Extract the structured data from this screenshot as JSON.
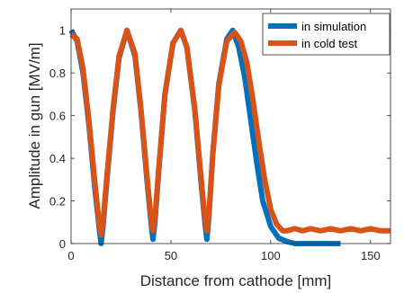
{
  "chart_data": {
    "type": "line",
    "xlabel": "Distance from cathode [mm]",
    "ylabel": "Amplitude in gun [MV/m]",
    "xlim": [
      0,
      160
    ],
    "ylim": [
      0,
      1.1
    ],
    "x_ticks": [
      0,
      50,
      100,
      150
    ],
    "y_ticks": [
      0,
      0.2,
      0.4,
      0.6,
      0.8,
      1
    ],
    "x_tick_labels": [
      "0",
      "50",
      "100",
      "150"
    ],
    "y_tick_labels": [
      "0",
      "0.2",
      "0.4",
      "0.6",
      "0.8",
      "1"
    ],
    "grid": false,
    "legend_position": "top-right",
    "series": [
      {
        "name": "in simulation",
        "color": "#0072BD",
        "x": [
          0,
          3,
          6,
          9,
          12,
          14,
          15,
          16,
          18,
          21,
          24,
          28,
          32,
          35,
          38,
          40,
          41,
          42,
          44,
          47,
          51,
          55,
          58,
          62,
          65,
          67,
          68,
          69,
          71,
          74,
          78,
          81,
          84,
          87,
          90,
          93,
          96,
          100,
          104,
          108,
          112,
          116,
          120,
          125,
          130,
          135
        ],
        "values": [
          1.0,
          0.95,
          0.8,
          0.55,
          0.25,
          0.08,
          0.0,
          0.08,
          0.3,
          0.62,
          0.87,
          1.0,
          0.88,
          0.62,
          0.3,
          0.1,
          0.02,
          0.1,
          0.35,
          0.7,
          0.94,
          1.0,
          0.92,
          0.62,
          0.3,
          0.1,
          0.02,
          0.12,
          0.42,
          0.75,
          0.96,
          1.0,
          0.92,
          0.78,
          0.58,
          0.38,
          0.2,
          0.08,
          0.025,
          0.01,
          0.0,
          0.0,
          0.0,
          0.0,
          0.0,
          0.0
        ]
      },
      {
        "name": "in cold test",
        "color": "#D95319",
        "x": [
          0,
          3,
          6,
          9,
          12,
          14,
          15,
          16,
          18,
          21,
          24,
          28,
          32,
          35,
          38,
          40,
          41,
          42,
          44,
          47,
          51,
          55,
          58,
          62,
          65,
          67,
          68,
          69,
          71,
          74,
          78,
          82,
          85,
          88,
          91,
          94,
          97,
          100,
          103,
          106,
          108,
          112,
          116,
          120,
          125,
          130,
          135,
          140,
          145,
          150,
          155,
          160
        ],
        "values": [
          0.98,
          0.96,
          0.82,
          0.57,
          0.28,
          0.1,
          0.04,
          0.1,
          0.32,
          0.63,
          0.88,
          1.0,
          0.89,
          0.63,
          0.32,
          0.12,
          0.06,
          0.12,
          0.36,
          0.7,
          0.94,
          1.0,
          0.92,
          0.63,
          0.32,
          0.12,
          0.06,
          0.13,
          0.42,
          0.74,
          0.95,
          0.99,
          0.95,
          0.85,
          0.68,
          0.48,
          0.3,
          0.16,
          0.09,
          0.06,
          0.06,
          0.07,
          0.06,
          0.07,
          0.06,
          0.07,
          0.06,
          0.07,
          0.06,
          0.07,
          0.06,
          0.06
        ]
      }
    ]
  }
}
